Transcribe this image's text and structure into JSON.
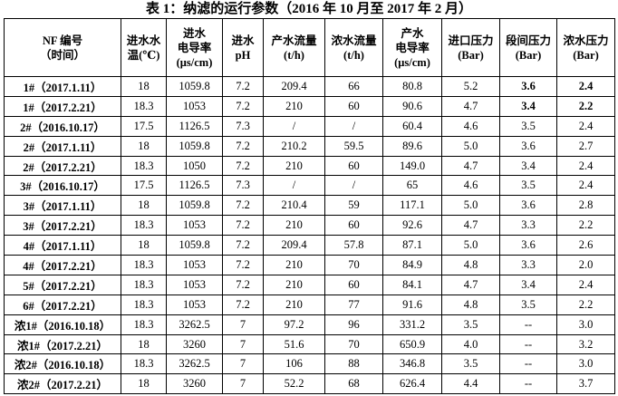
{
  "title": "表 1：纳滤的运行参数（2016 年 10 月至 2017 年 2 月）",
  "table": {
    "header": [
      [
        "NF 编号",
        "（时间）"
      ],
      [
        "进水水",
        "温(℃)"
      ],
      [
        "进水",
        "电导率",
        "(μs/cm)"
      ],
      [
        "进水",
        "pH"
      ],
      [
        "产水流量",
        "(t/h)"
      ],
      [
        "浓水流量",
        "(t/h)"
      ],
      [
        "产水",
        "电导率",
        "(μs/cm)"
      ],
      [
        "进口压力",
        "(Bar)"
      ],
      [
        "段间压力",
        "(Bar)"
      ],
      [
        "浓水压力",
        "(Bar)"
      ]
    ],
    "rows": [
      [
        "1#（2017.1.11）",
        "18",
        "1059.8",
        "7.2",
        "209.4",
        "66",
        "80.8",
        "5.2",
        "3.6",
        "2.4"
      ],
      [
        "1#（2017.2.21）",
        "18.3",
        "1053",
        "7.2",
        "210",
        "60",
        "90.6",
        "4.7",
        "3.4",
        "2.2"
      ],
      [
        "2#（2016.10.17）",
        "17.5",
        "1126.5",
        "7.3",
        "/",
        "/",
        "60.4",
        "4.6",
        "3.5",
        "2.4"
      ],
      [
        "2#（2017.1.11）",
        "18",
        "1059.8",
        "7.2",
        "210.2",
        "59.5",
        "89.6",
        "5.0",
        "3.6",
        "2.7"
      ],
      [
        "2#（2017.2.21）",
        "18.3",
        "1050",
        "7.2",
        "210",
        "60",
        "149.0",
        "4.7",
        "3.4",
        "2.4"
      ],
      [
        "3#（2016.10.17）",
        "17.5",
        "1126.5",
        "7.3",
        "/",
        "/",
        "65",
        "4.6",
        "3.5",
        "2.4"
      ],
      [
        "3#（2017.1.11）",
        "18",
        "1059.8",
        "7.2",
        "210.4",
        "59",
        "117.1",
        "5.0",
        "3.6",
        "2.8"
      ],
      [
        "3#（2017.2.21）",
        "18.3",
        "1053",
        "7.2",
        "210",
        "60",
        "92.6",
        "4.7",
        "3.3",
        "2.2"
      ],
      [
        "4#（2017.1.11）",
        "18",
        "1059.8",
        "7.2",
        "209.4",
        "57.8",
        "87.1",
        "5.0",
        "3.6",
        "2.6"
      ],
      [
        "4#（2017.2.21）",
        "18.3",
        "1053",
        "7.2",
        "210",
        "70",
        "84.9",
        "4.8",
        "3.3",
        "2.0"
      ],
      [
        "5#（2017.2.21）",
        "18.3",
        "1053",
        "7.2",
        "210",
        "60",
        "84.1",
        "4.7",
        "3.4",
        "2.4"
      ],
      [
        "6#（2017.2.21）",
        "18.3",
        "1053",
        "7.2",
        "210",
        "77",
        "91.6",
        "4.8",
        "3.5",
        "2.2"
      ],
      [
        "浓1#（2016.10.18）",
        "18.3",
        "3262.5",
        "7",
        "97.2",
        "96",
        "331.2",
        "3.5",
        "--",
        "3.0"
      ],
      [
        "浓1#（2017.2.21）",
        "18",
        "3260",
        "7",
        "51.6",
        "70",
        "650.9",
        "4.0",
        "--",
        "3.2"
      ],
      [
        "浓2#（2016.10.18）",
        "18.3",
        "3262.5",
        "7",
        "106",
        "88",
        "346.8",
        "3.5",
        "--",
        "3.0"
      ],
      [
        "浓2#（2017.2.21）",
        "18",
        "3260",
        "7",
        "52.2",
        "68",
        "626.4",
        "4.4",
        "--",
        "3.7"
      ]
    ]
  }
}
